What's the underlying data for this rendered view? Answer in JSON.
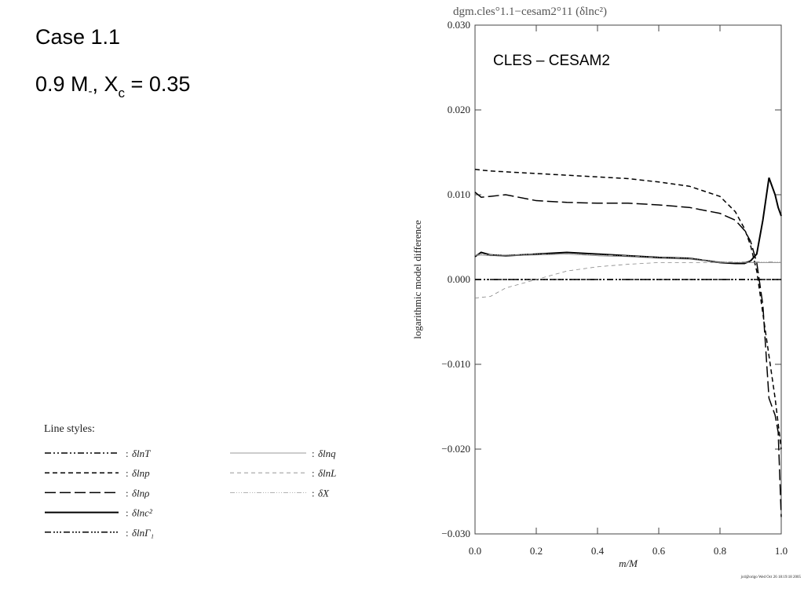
{
  "slide": {
    "title": "Case 1.1",
    "subtitle_parts": [
      "0.9 M",
      "-",
      ", X",
      "c",
      " = 0.35"
    ],
    "footer": "jcd@origo Wed Oct 26 18:19:18 2005"
  },
  "chart_data": {
    "type": "line",
    "title": "dgm.cles°1.1−cesam2°11  (δlnc²)",
    "annotation": "CLES – CESAM2",
    "xlabel": "m/M",
    "ylabel": "logarithmic model difference",
    "legend_title": "Line styles:",
    "xlim": [
      0,
      1.0
    ],
    "ylim": [
      -0.03,
      0.03
    ],
    "xticks": [
      {
        "value": 0,
        "label": "0.0"
      },
      {
        "value": 0.2,
        "label": "0.2"
      },
      {
        "value": 0.4,
        "label": "0.4"
      },
      {
        "value": 0.6,
        "label": "0.6"
      },
      {
        "value": 0.8,
        "label": "0.8"
      },
      {
        "value": 1.0,
        "label": "1.0"
      }
    ],
    "yticks": [
      {
        "value": -0.03,
        "label": "−0.030"
      },
      {
        "value": -0.02,
        "label": "−0.020"
      },
      {
        "value": -0.01,
        "label": "−0.010"
      },
      {
        "value": 0,
        "label": "0.000"
      },
      {
        "value": 0.01,
        "label": "0.010"
      },
      {
        "value": 0.02,
        "label": "0.020"
      },
      {
        "value": 0.03,
        "label": "0.030"
      }
    ],
    "x": [
      0,
      0.02,
      0.05,
      0.1,
      0.2,
      0.3,
      0.4,
      0.5,
      0.6,
      0.7,
      0.8,
      0.85,
      0.88,
      0.9,
      0.92,
      0.94,
      0.96,
      0.98,
      0.99,
      1.0
    ],
    "series": [
      {
        "name": "δlnT",
        "color": "#000000",
        "dash": "8 3 2 3 2 3",
        "width": 1.5,
        "values": [
          0,
          0,
          0,
          0,
          0,
          0,
          0,
          0,
          0,
          0,
          0,
          0,
          0,
          0,
          0,
          0,
          0,
          0,
          0,
          0
        ]
      },
      {
        "name": "δlnp",
        "color": "#000000",
        "dash": "6 4",
        "width": 1.5,
        "values": [
          0.013,
          0.0129,
          0.0128,
          0.0127,
          0.0125,
          0.0123,
          0.0121,
          0.0119,
          0.0115,
          0.011,
          0.0098,
          0.008,
          0.006,
          0.004,
          0.001,
          -0.004,
          -0.009,
          -0.014,
          -0.017,
          -0.02
        ]
      },
      {
        "name": "δlnρ",
        "color": "#000000",
        "dash": "14 5",
        "width": 1.5,
        "values": [
          0.0103,
          0.0097,
          0.0098,
          0.01,
          0.0093,
          0.0091,
          0.009,
          0.009,
          0.0088,
          0.0085,
          0.0078,
          0.007,
          0.0058,
          0.0045,
          0.002,
          -0.003,
          -0.014,
          -0.016,
          -0.018,
          -0.028
        ]
      },
      {
        "name": "δlnc²",
        "color": "#000000",
        "dash": "none",
        "width": 2,
        "values": [
          0.0027,
          0.0032,
          0.0029,
          0.0028,
          0.003,
          0.0032,
          0.003,
          0.0028,
          0.0026,
          0.0025,
          0.002,
          0.0019,
          0.0019,
          0.0022,
          0.003,
          0.007,
          0.012,
          0.01,
          0.0085,
          0.0075
        ]
      },
      {
        "name": "δlnΓ₁",
        "color": "#000000",
        "dash": "8 3 2 2 2 2 2 3",
        "width": 1.5,
        "values": [
          0,
          0,
          0,
          0,
          0,
          0,
          0,
          0,
          0,
          0,
          0,
          0,
          0,
          0,
          0,
          0,
          0,
          0,
          0,
          0
        ]
      },
      {
        "name": "δlnq",
        "color": "#777777",
        "dash": "none",
        "width": 0.8,
        "values": [
          0.0028,
          0.0029,
          0.0028,
          0.0028,
          0.0029,
          0.003,
          0.0028,
          0.0027,
          0.0025,
          0.0024,
          0.002,
          0.002,
          0.002,
          0.002,
          0.002,
          0.002,
          0.002,
          0.002,
          0.002,
          0.002
        ]
      },
      {
        "name": "δlnL",
        "color": "#888888",
        "dash": "5 4",
        "width": 0.8,
        "values": [
          -0.0022,
          -0.0021,
          -0.002,
          -0.001,
          0,
          0.001,
          0.0015,
          0.0018,
          0.002,
          0.002,
          0.002,
          0.002,
          0.002,
          0.002,
          0.002,
          0.002,
          0.002,
          0.002,
          0.002,
          0.002
        ]
      },
      {
        "name": "δX",
        "color": "#999999",
        "dash": "6 2 1 2 1 2 1 2",
        "width": 0.8,
        "values": [
          0.0029,
          0.003,
          0.0029,
          0.0029,
          0.003,
          0.003,
          0.0029,
          0.0028,
          0.0026,
          0.0025,
          0.0021,
          0.0021,
          0.0021,
          0.0021,
          0.0021,
          0.0021,
          0.0021,
          0.0021,
          0.0021,
          0.0021
        ]
      }
    ]
  }
}
